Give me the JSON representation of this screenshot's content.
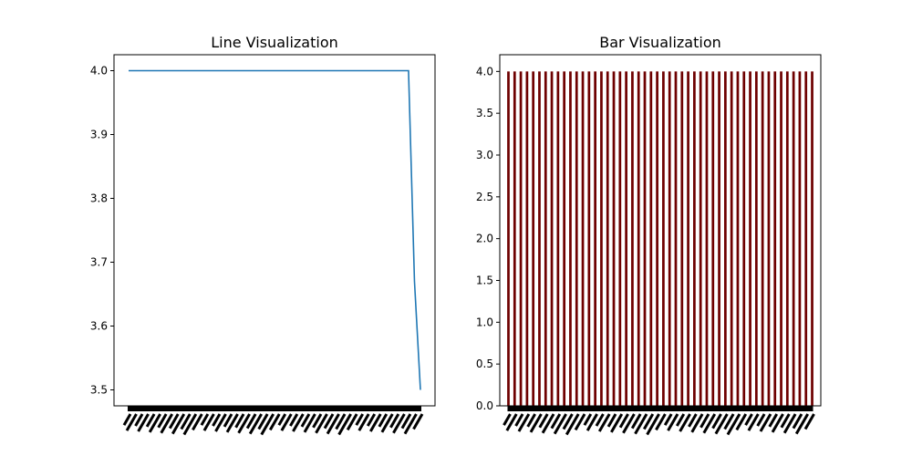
{
  "chart_data": [
    {
      "type": "line",
      "title": "Line Visualization",
      "xlabel": "",
      "ylabel": "",
      "ylim": [
        3.475,
        4.025
      ],
      "yticks": [
        "3.5",
        "3.6",
        "3.7",
        "3.8",
        "3.9",
        "4.0"
      ],
      "grid": false,
      "line_color": "#1f77b4",
      "x_count": 50,
      "values": [
        4,
        4,
        4,
        4,
        4,
        4,
        4,
        4,
        4,
        4,
        4,
        4,
        4,
        4,
        4,
        4,
        4,
        4,
        4,
        4,
        4,
        4,
        4,
        4,
        4,
        4,
        4,
        4,
        4,
        4,
        4,
        4,
        4,
        4,
        4,
        4,
        4,
        4,
        4,
        4,
        4,
        4,
        4,
        4,
        4,
        4,
        4,
        4,
        3.67,
        3.5
      ]
    },
    {
      "type": "bar",
      "title": "Bar Visualization",
      "xlabel": "",
      "ylabel": "",
      "ylim": [
        0,
        4.2
      ],
      "yticks": [
        "0.0",
        "0.5",
        "1.0",
        "1.5",
        "2.0",
        "2.5",
        "3.0",
        "3.5",
        "4.0"
      ],
      "grid": false,
      "bar_color": "#6e0000",
      "x_count": 50,
      "values": [
        4,
        4,
        4,
        4,
        4,
        4,
        4,
        4,
        4,
        4,
        4,
        4,
        4,
        4,
        4,
        4,
        4,
        4,
        4,
        4,
        4,
        4,
        4,
        4,
        4,
        4,
        4,
        4,
        4,
        4,
        4,
        4,
        4,
        4,
        4,
        4,
        4,
        4,
        4,
        4,
        4,
        4,
        4,
        4,
        4,
        4,
        4,
        4,
        4,
        4
      ]
    }
  ]
}
